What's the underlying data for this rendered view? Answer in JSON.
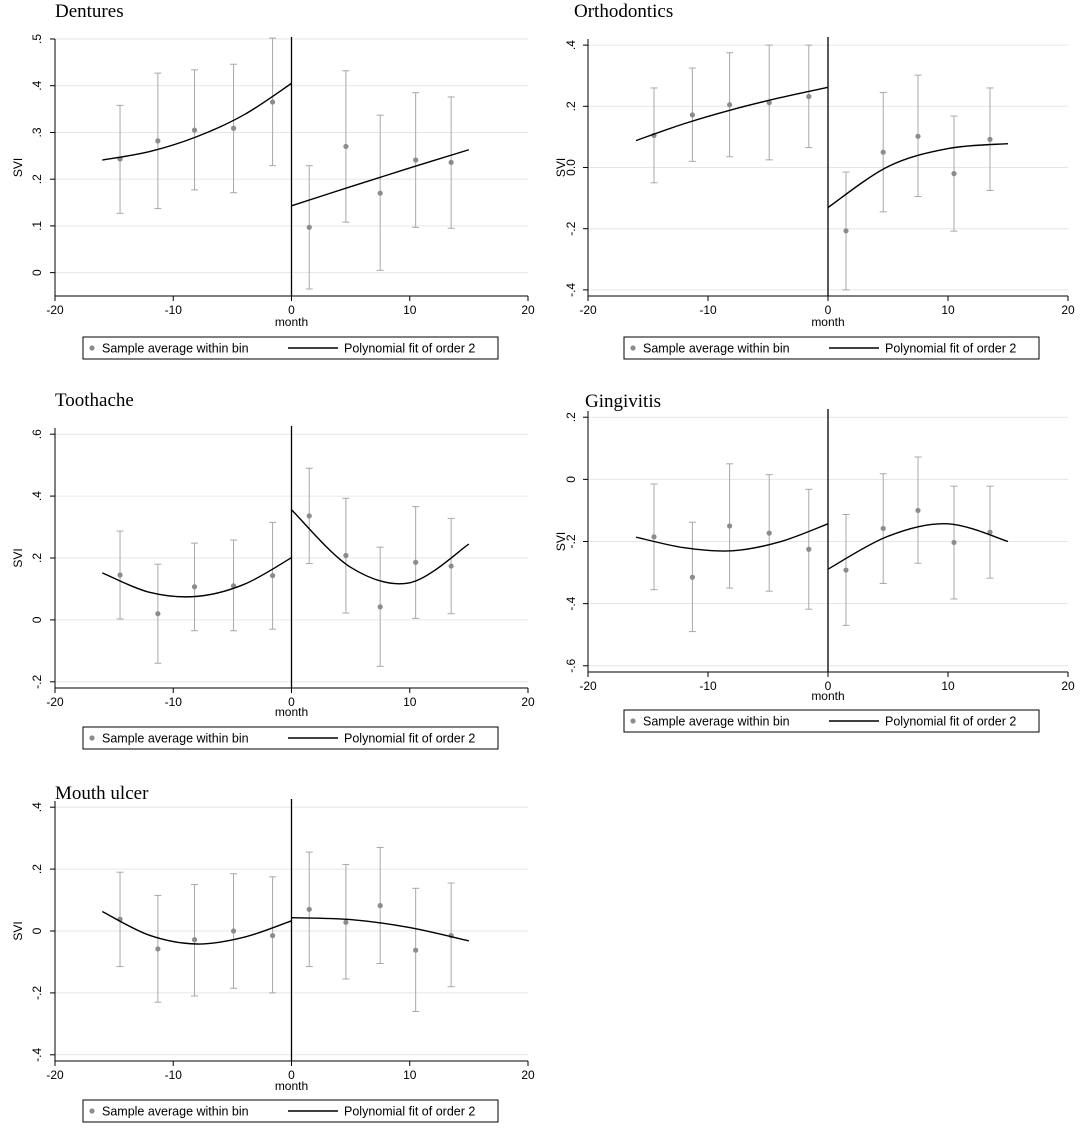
{
  "chart_data": [
    {
      "type": "scatter",
      "title": "Dentures",
      "xlabel": "month",
      "ylabel": "SVI",
      "xlim": [
        -20,
        20
      ],
      "ylim": [
        -0.05,
        0.5
      ],
      "xticks": [
        -20,
        -10,
        0,
        10,
        20
      ],
      "xtick_labels": [
        "-20",
        "-10",
        "0",
        "10",
        "20"
      ],
      "yticks": [
        0,
        0.1,
        0.2,
        0.3,
        0.4,
        0.5
      ],
      "ytick_labels": [
        "0",
        ".1",
        ".2",
        ".3",
        ".4",
        ".5"
      ],
      "cutoff": 0,
      "points": [
        {
          "x": -14.5,
          "y": 0.243,
          "lo": 0.127,
          "hi": 0.358
        },
        {
          "x": -11.3,
          "y": 0.282,
          "lo": 0.137,
          "hi": 0.427
        },
        {
          "x": -8.2,
          "y": 0.305,
          "lo": 0.177,
          "hi": 0.434
        },
        {
          "x": -4.9,
          "y": 0.309,
          "lo": 0.171,
          "hi": 0.446
        },
        {
          "x": -1.6,
          "y": 0.365,
          "lo": 0.229,
          "hi": 0.502
        },
        {
          "x": 1.5,
          "y": 0.097,
          "lo": -0.035,
          "hi": 0.229
        },
        {
          "x": 4.6,
          "y": 0.27,
          "lo": 0.108,
          "hi": 0.432
        },
        {
          "x": 7.5,
          "y": 0.17,
          "lo": 0.005,
          "hi": 0.337
        },
        {
          "x": 10.5,
          "y": 0.241,
          "lo": 0.097,
          "hi": 0.385
        },
        {
          "x": 13.5,
          "y": 0.236,
          "lo": 0.095,
          "hi": 0.376
        }
      ],
      "fit_left": {
        "x": [
          -16,
          -12,
          -8,
          -4,
          0
        ],
        "y": [
          0.241,
          0.259,
          0.291,
          0.338,
          0.405
        ]
      },
      "fit_right": {
        "x": [
          0,
          5,
          10,
          15
        ],
        "y": [
          0.143,
          0.184,
          0.224,
          0.263
        ]
      },
      "legend": [
        "Sample average within bin",
        "Polynomial fit of order 2"
      ]
    },
    {
      "type": "scatter",
      "title": "Orthodontics",
      "xlabel": "month",
      "ylabel": "SVI",
      "xlim": [
        -20,
        20
      ],
      "ylim": [
        -0.42,
        0.42
      ],
      "xticks": [
        -20,
        -10,
        0,
        10,
        20
      ],
      "xtick_labels": [
        "-20",
        "-10",
        "0",
        "10",
        "20"
      ],
      "yticks": [
        -0.4,
        -0.2,
        0,
        0.2,
        0.4
      ],
      "ytick_labels": [
        "-.4",
        "-.2",
        "0.0",
        ".2",
        ".4"
      ],
      "cutoff": 0,
      "points": [
        {
          "x": -14.5,
          "y": 0.105,
          "lo": -0.05,
          "hi": 0.26
        },
        {
          "x": -11.3,
          "y": 0.172,
          "lo": 0.02,
          "hi": 0.325
        },
        {
          "x": -8.2,
          "y": 0.205,
          "lo": 0.035,
          "hi": 0.375
        },
        {
          "x": -4.9,
          "y": 0.212,
          "lo": 0.025,
          "hi": 0.4
        },
        {
          "x": -1.6,
          "y": 0.232,
          "lo": 0.065,
          "hi": 0.4
        },
        {
          "x": 1.5,
          "y": -0.207,
          "lo": -0.4,
          "hi": -0.015
        },
        {
          "x": 4.6,
          "y": 0.05,
          "lo": -0.145,
          "hi": 0.245
        },
        {
          "x": 7.5,
          "y": 0.102,
          "lo": -0.095,
          "hi": 0.302
        },
        {
          "x": 10.5,
          "y": -0.02,
          "lo": -0.208,
          "hi": 0.168
        },
        {
          "x": 13.5,
          "y": 0.092,
          "lo": -0.075,
          "hi": 0.26
        }
      ],
      "fit_left": {
        "x": [
          -16,
          -12,
          -8,
          -4,
          0
        ],
        "y": [
          0.088,
          0.143,
          0.189,
          0.228,
          0.262
        ]
      },
      "fit_right": {
        "x": [
          0,
          5,
          10,
          15
        ],
        "y": [
          -0.131,
          0.003,
          0.062,
          0.078
        ]
      },
      "legend": [
        "Sample average within bin",
        "Polynomial fit of order 2"
      ]
    },
    {
      "type": "scatter",
      "title": "Toothache",
      "xlabel": "month",
      "ylabel": "SVI",
      "xlim": [
        -20,
        20
      ],
      "ylim": [
        -0.22,
        0.62
      ],
      "xticks": [
        -20,
        -10,
        0,
        10,
        20
      ],
      "xtick_labels": [
        "-20",
        "-10",
        "0",
        "10",
        "20"
      ],
      "yticks": [
        -0.2,
        0,
        0.2,
        0.4,
        0.6
      ],
      "ytick_labels": [
        "-.2",
        "0",
        ".2",
        ".4",
        ".6"
      ],
      "cutoff": 0,
      "points": [
        {
          "x": -14.5,
          "y": 0.145,
          "lo": 0.003,
          "hi": 0.287
        },
        {
          "x": -11.3,
          "y": 0.02,
          "lo": -0.14,
          "hi": 0.18
        },
        {
          "x": -8.2,
          "y": 0.107,
          "lo": -0.035,
          "hi": 0.248
        },
        {
          "x": -4.9,
          "y": 0.11,
          "lo": -0.035,
          "hi": 0.258
        },
        {
          "x": -1.6,
          "y": 0.143,
          "lo": -0.03,
          "hi": 0.315
        },
        {
          "x": 1.5,
          "y": 0.336,
          "lo": 0.182,
          "hi": 0.49
        },
        {
          "x": 4.6,
          "y": 0.208,
          "lo": 0.022,
          "hi": 0.393
        },
        {
          "x": 7.5,
          "y": 0.042,
          "lo": -0.15,
          "hi": 0.235
        },
        {
          "x": 10.5,
          "y": 0.186,
          "lo": 0.005,
          "hi": 0.366
        },
        {
          "x": 13.5,
          "y": 0.174,
          "lo": 0.02,
          "hi": 0.328
        }
      ],
      "fit_left": {
        "x": [
          -16,
          -12,
          -8,
          -4,
          0
        ],
        "y": [
          0.152,
          0.089,
          0.076,
          0.115,
          0.201
        ]
      },
      "fit_right": {
        "x": [
          0,
          5,
          10,
          15
        ],
        "y": [
          0.356,
          0.17,
          0.12,
          0.245
        ]
      },
      "legend": [
        "Sample average within bin",
        "Polynomial fit of order 2"
      ]
    },
    {
      "type": "scatter",
      "title": "Gingivitis",
      "xlabel": "month",
      "ylabel": "SVI",
      "xlim": [
        -20,
        20
      ],
      "ylim": [
        -0.62,
        0.22
      ],
      "xticks": [
        -20,
        -10,
        0,
        10,
        20
      ],
      "xtick_labels": [
        "-20",
        "-10",
        "0",
        "10",
        "20"
      ],
      "yticks": [
        -0.6,
        -0.4,
        -0.2,
        0,
        0.2
      ],
      "ytick_labels": [
        "-.6",
        "-.4",
        "-.2",
        "0",
        ".2"
      ],
      "cutoff": 0,
      "points": [
        {
          "x": -14.5,
          "y": -0.185,
          "lo": -0.355,
          "hi": -0.015
        },
        {
          "x": -11.3,
          "y": -0.315,
          "lo": -0.49,
          "hi": -0.138
        },
        {
          "x": -8.2,
          "y": -0.15,
          "lo": -0.35,
          "hi": 0.05
        },
        {
          "x": -4.9,
          "y": -0.173,
          "lo": -0.36,
          "hi": 0.015
        },
        {
          "x": -1.6,
          "y": -0.225,
          "lo": -0.418,
          "hi": -0.032
        },
        {
          "x": 1.5,
          "y": -0.292,
          "lo": -0.47,
          "hi": -0.113
        },
        {
          "x": 4.6,
          "y": -0.158,
          "lo": -0.335,
          "hi": 0.018
        },
        {
          "x": 7.5,
          "y": -0.1,
          "lo": -0.27,
          "hi": 0.072
        },
        {
          "x": 10.5,
          "y": -0.203,
          "lo": -0.385,
          "hi": -0.022
        },
        {
          "x": 13.5,
          "y": -0.17,
          "lo": -0.318,
          "hi": -0.022
        }
      ],
      "fit_left": {
        "x": [
          -16,
          -12,
          -8,
          -4,
          0
        ],
        "y": [
          -0.186,
          -0.22,
          -0.23,
          -0.201,
          -0.143
        ]
      },
      "fit_right": {
        "x": [
          0,
          5,
          10,
          15
        ],
        "y": [
          -0.289,
          -0.183,
          -0.143,
          -0.2
        ]
      },
      "legend": [
        "Sample average within bin",
        "Polynomial fit of order 2"
      ]
    },
    {
      "type": "scatter",
      "title": "Mouth ulcer",
      "xlabel": "month",
      "ylabel": "SVI",
      "xlim": [
        -20,
        20
      ],
      "ylim": [
        -0.42,
        0.42
      ],
      "xticks": [
        -20,
        -10,
        0,
        10,
        20
      ],
      "xtick_labels": [
        "-20",
        "-10",
        "0",
        "10",
        "20"
      ],
      "yticks": [
        -0.4,
        -0.2,
        0,
        0.2,
        0.4
      ],
      "ytick_labels": [
        "-.4",
        "-.2",
        "0",
        ".2",
        ".4"
      ],
      "cutoff": 0,
      "points": [
        {
          "x": -14.5,
          "y": 0.038,
          "lo": -0.115,
          "hi": 0.19
        },
        {
          "x": -11.3,
          "y": -0.058,
          "lo": -0.23,
          "hi": 0.115
        },
        {
          "x": -8.2,
          "y": -0.028,
          "lo": -0.21,
          "hi": 0.15
        },
        {
          "x": -4.9,
          "y": 0.0,
          "lo": -0.185,
          "hi": 0.185
        },
        {
          "x": -1.6,
          "y": -0.015,
          "lo": -0.2,
          "hi": 0.175
        },
        {
          "x": 1.5,
          "y": 0.07,
          "lo": -0.115,
          "hi": 0.255
        },
        {
          "x": 4.6,
          "y": 0.028,
          "lo": -0.155,
          "hi": 0.215
        },
        {
          "x": 7.5,
          "y": 0.082,
          "lo": -0.105,
          "hi": 0.27
        },
        {
          "x": 10.5,
          "y": -0.062,
          "lo": -0.26,
          "hi": 0.138
        },
        {
          "x": 13.5,
          "y": -0.015,
          "lo": -0.18,
          "hi": 0.155
        }
      ],
      "fit_left": {
        "x": [
          -16,
          -12,
          -8,
          -4,
          0
        ],
        "y": [
          0.063,
          -0.014,
          -0.042,
          -0.02,
          0.033
        ]
      },
      "fit_right": {
        "x": [
          0,
          5,
          10,
          15
        ],
        "y": [
          0.043,
          0.037,
          0.011,
          -0.032
        ]
      },
      "legend": [
        "Sample average within bin",
        "Polynomial fit of order 2"
      ]
    }
  ]
}
